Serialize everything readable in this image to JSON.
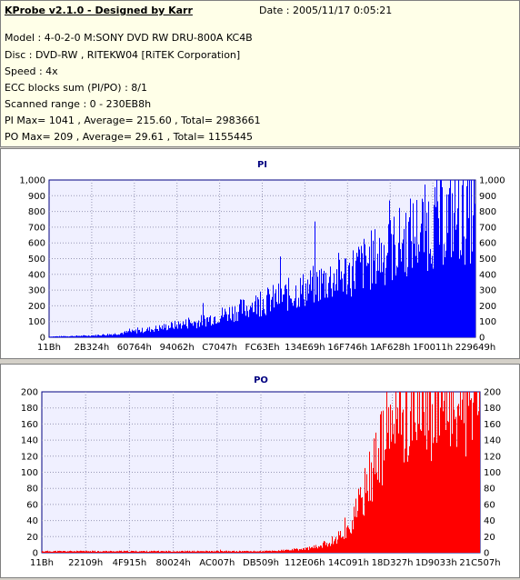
{
  "header": {
    "title": "KProbe v2.1.0 - Designed by Karr",
    "date": "Date : 2005/11/17 0:05:21",
    "lines": [
      "Model : 4-0-2-0 M:SONY     DVD RW DRU-800A  KC4B",
      "Disc : DVD-RW , RITEKW04 [RiTEK Corporation]",
      "Speed : 4x",
      "ECC blocks sum (PI/PO) : 8/1",
      "Scanned range : 0 - 230EB8h",
      "PI Max= 1041 , Average= 215.60 , Total= 2983661",
      "PO Max= 209 , Average= 29.61 , Total= 1155445"
    ]
  },
  "chart_data": [
    {
      "type": "area",
      "title": "PI",
      "color": "#0000ff",
      "ylim": [
        0,
        1000
      ],
      "yticks": [
        "0",
        "100",
        "200",
        "300",
        "400",
        "500",
        "600",
        "700",
        "800",
        "900",
        "1,000"
      ],
      "xticks": [
        "11Bh",
        "2B324h",
        "60764h",
        "94062h",
        "C7047h",
        "FC63Eh",
        "134E69h",
        "16F746h",
        "1AF628h",
        "1F0011h",
        "229649h"
      ],
      "x_frac": [
        0,
        0.05,
        0.1,
        0.15,
        0.2,
        0.25,
        0.3,
        0.35,
        0.4,
        0.45,
        0.5,
        0.55,
        0.6,
        0.65,
        0.7,
        0.75,
        0.8,
        0.85,
        0.9,
        0.95,
        1.0
      ],
      "values": [
        5,
        8,
        12,
        22,
        40,
        60,
        85,
        105,
        150,
        190,
        240,
        280,
        330,
        390,
        440,
        520,
        600,
        700,
        780,
        830,
        830
      ],
      "max": 1041
    },
    {
      "type": "area",
      "title": "PO",
      "color": "#ff0000",
      "ylim": [
        0,
        200
      ],
      "yticks": [
        "0",
        "20",
        "40",
        "60",
        "80",
        "100",
        "120",
        "140",
        "160",
        "180",
        "200"
      ],
      "xticks": [
        "11Bh",
        "22109h",
        "4F915h",
        "80024h",
        "AC007h",
        "DB509h",
        "112E06h",
        "14C091h",
        "18D327h",
        "1D9033h",
        "21C507h"
      ],
      "x_frac": [
        0,
        0.1,
        0.2,
        0.3,
        0.4,
        0.5,
        0.55,
        0.6,
        0.63,
        0.66,
        0.7,
        0.73,
        0.76,
        0.8,
        0.84,
        0.87,
        0.9,
        1.0
      ],
      "values": [
        2,
        2,
        2,
        2,
        2,
        2,
        3,
        5,
        8,
        15,
        30,
        70,
        120,
        170,
        195,
        205,
        208,
        208
      ],
      "max": 209
    }
  ]
}
